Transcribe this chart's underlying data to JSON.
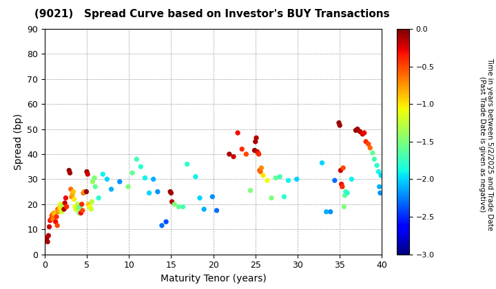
{
  "title": "(9021)   Spread Curve based on Investor's BUY Transactions",
  "xlabel": "Maturity Tenor (years)",
  "ylabel": "Spread (bp)",
  "colorbar_label_line1": "Time in years between 5/2/2025 and Trade Date",
  "colorbar_label_line2": "(Past Trade Date is given as negative)",
  "xlim": [
    0,
    40
  ],
  "ylim": [
    0,
    90
  ],
  "xticks": [
    0,
    5,
    10,
    15,
    20,
    25,
    30,
    35,
    40
  ],
  "yticks": [
    0,
    10,
    20,
    30,
    40,
    50,
    60,
    70,
    80,
    90
  ],
  "cmap": "jet",
  "vmin": -3.0,
  "vmax": 0.0,
  "colorbar_ticks": [
    0.0,
    -0.5,
    -1.0,
    -1.5,
    -2.0,
    -2.5,
    -3.0
  ],
  "scatter_points": [
    [
      0.25,
      6.5,
      -0.05
    ],
    [
      0.35,
      5.0,
      -0.1
    ],
    [
      0.45,
      7.5,
      -0.15
    ],
    [
      0.55,
      11.0,
      -0.2
    ],
    [
      0.65,
      13.5,
      -0.3
    ],
    [
      0.75,
      14.0,
      -0.4
    ],
    [
      0.85,
      15.5,
      -0.5
    ],
    [
      0.95,
      16.0,
      -0.6
    ],
    [
      1.0,
      14.0,
      -0.7
    ],
    [
      1.1,
      16.5,
      -0.8
    ],
    [
      1.2,
      16.0,
      -0.9
    ],
    [
      1.3,
      13.0,
      -0.3
    ],
    [
      1.4,
      15.0,
      -0.4
    ],
    [
      1.5,
      11.5,
      -0.5
    ],
    [
      1.55,
      18.0,
      -0.6
    ],
    [
      1.6,
      17.0,
      -0.7
    ],
    [
      1.7,
      17.5,
      -0.8
    ],
    [
      1.8,
      19.0,
      -0.9
    ],
    [
      1.85,
      18.5,
      -1.0
    ],
    [
      1.9,
      20.0,
      -1.1
    ],
    [
      2.0,
      17.0,
      -1.2
    ],
    [
      2.1,
      19.5,
      -1.3
    ],
    [
      2.3,
      18.0,
      -0.1
    ],
    [
      2.4,
      20.5,
      -0.2
    ],
    [
      2.5,
      22.5,
      -0.3
    ],
    [
      2.6,
      19.0,
      -0.4
    ],
    [
      2.9,
      33.5,
      -0.05
    ],
    [
      3.0,
      32.5,
      -0.1
    ],
    [
      3.1,
      26.0,
      -0.6
    ],
    [
      3.2,
      23.0,
      -0.7
    ],
    [
      3.3,
      24.0,
      -0.8
    ],
    [
      3.4,
      25.0,
      -0.9
    ],
    [
      3.5,
      22.0,
      -1.0
    ],
    [
      3.6,
      19.0,
      -1.1
    ],
    [
      3.7,
      18.0,
      -1.2
    ],
    [
      3.9,
      20.0,
      -1.3
    ],
    [
      4.0,
      18.5,
      -1.4
    ],
    [
      4.1,
      16.5,
      -1.5
    ],
    [
      4.2,
      19.0,
      -1.6
    ],
    [
      4.3,
      16.5,
      -0.3
    ],
    [
      4.4,
      20.0,
      -0.4
    ],
    [
      4.5,
      17.5,
      -0.5
    ],
    [
      4.6,
      24.5,
      -0.6
    ],
    [
      4.7,
      25.0,
      -0.7
    ],
    [
      4.8,
      25.0,
      -0.8
    ],
    [
      4.95,
      25.0,
      -0.05
    ],
    [
      5.0,
      33.0,
      -0.1
    ],
    [
      5.1,
      32.0,
      -0.2
    ],
    [
      5.2,
      20.0,
      -0.9
    ],
    [
      5.3,
      19.0,
      -1.0
    ],
    [
      5.4,
      19.0,
      -1.1
    ],
    [
      5.5,
      18.0,
      -1.2
    ],
    [
      5.6,
      21.0,
      -1.3
    ],
    [
      5.7,
      29.0,
      -1.4
    ],
    [
      5.9,
      30.5,
      -1.5
    ],
    [
      6.0,
      27.0,
      -1.6
    ],
    [
      6.4,
      22.5,
      -1.8
    ],
    [
      6.9,
      32.0,
      -1.9
    ],
    [
      7.4,
      30.0,
      -2.0
    ],
    [
      7.9,
      26.0,
      -2.1
    ],
    [
      8.9,
      29.0,
      -2.2
    ],
    [
      9.9,
      27.0,
      -1.5
    ],
    [
      10.4,
      32.5,
      -1.6
    ],
    [
      10.9,
      38.0,
      -1.7
    ],
    [
      11.4,
      35.0,
      -1.8
    ],
    [
      11.9,
      30.5,
      -1.9
    ],
    [
      12.4,
      24.5,
      -2.0
    ],
    [
      12.9,
      30.0,
      -2.1
    ],
    [
      13.4,
      25.0,
      -2.2
    ],
    [
      13.9,
      11.5,
      -2.3
    ],
    [
      14.4,
      13.0,
      -2.4
    ],
    [
      14.9,
      25.0,
      -0.05
    ],
    [
      15.0,
      24.5,
      -0.1
    ],
    [
      15.1,
      21.0,
      -0.15
    ],
    [
      15.4,
      20.0,
      -1.5
    ],
    [
      15.9,
      19.0,
      -1.6
    ],
    [
      16.4,
      19.0,
      -1.7
    ],
    [
      16.9,
      36.0,
      -1.8
    ],
    [
      17.9,
      31.0,
      -1.9
    ],
    [
      18.4,
      22.5,
      -2.0
    ],
    [
      18.9,
      18.0,
      -2.1
    ],
    [
      19.9,
      23.0,
      -2.2
    ],
    [
      20.4,
      17.5,
      -2.3
    ],
    [
      21.9,
      40.0,
      -0.1
    ],
    [
      22.4,
      39.0,
      -0.2
    ],
    [
      22.9,
      48.5,
      -0.3
    ],
    [
      23.4,
      42.0,
      -0.4
    ],
    [
      23.9,
      40.0,
      -0.5
    ],
    [
      24.4,
      25.5,
      -1.5
    ],
    [
      24.9,
      41.5,
      -0.05
    ],
    [
      25.0,
      45.0,
      -0.1
    ],
    [
      25.1,
      46.5,
      -0.15
    ],
    [
      25.2,
      41.0,
      -0.2
    ],
    [
      25.3,
      40.5,
      -0.3
    ],
    [
      25.4,
      40.0,
      -0.4
    ],
    [
      25.5,
      33.5,
      -0.5
    ],
    [
      25.6,
      33.0,
      -0.6
    ],
    [
      25.7,
      34.5,
      -0.7
    ],
    [
      25.9,
      31.5,
      -1.0
    ],
    [
      26.4,
      29.5,
      -1.1
    ],
    [
      26.9,
      22.5,
      -1.5
    ],
    [
      27.4,
      30.5,
      -1.6
    ],
    [
      27.9,
      31.0,
      -1.7
    ],
    [
      28.4,
      23.0,
      -1.8
    ],
    [
      28.9,
      29.5,
      -1.9
    ],
    [
      29.9,
      30.0,
      -2.0
    ],
    [
      32.9,
      36.5,
      -2.0
    ],
    [
      33.4,
      17.0,
      -2.1
    ],
    [
      33.9,
      17.0,
      -2.2
    ],
    [
      34.4,
      29.5,
      -2.3
    ],
    [
      34.9,
      52.5,
      -0.05
    ],
    [
      35.0,
      51.5,
      -0.1
    ],
    [
      35.1,
      33.5,
      -0.2
    ],
    [
      35.2,
      28.0,
      -0.3
    ],
    [
      35.3,
      27.0,
      -0.4
    ],
    [
      35.4,
      34.5,
      -0.5
    ],
    [
      35.5,
      19.0,
      -1.5
    ],
    [
      35.6,
      23.5,
      -1.6
    ],
    [
      35.7,
      25.0,
      -1.7
    ],
    [
      35.9,
      24.5,
      -1.8
    ],
    [
      36.4,
      30.0,
      -1.9
    ],
    [
      36.9,
      49.5,
      -0.05
    ],
    [
      37.1,
      50.0,
      -0.1
    ],
    [
      37.4,
      49.0,
      -0.15
    ],
    [
      37.7,
      48.0,
      -0.2
    ],
    [
      37.9,
      48.5,
      -0.3
    ],
    [
      38.1,
      45.0,
      -0.4
    ],
    [
      38.4,
      44.0,
      -0.5
    ],
    [
      38.6,
      42.5,
      -0.6
    ],
    [
      38.9,
      40.5,
      -1.6
    ],
    [
      39.1,
      38.0,
      -1.7
    ],
    [
      39.4,
      35.5,
      -1.8
    ],
    [
      39.6,
      33.0,
      -1.9
    ],
    [
      39.9,
      31.5,
      -2.0
    ],
    [
      39.7,
      27.0,
      -2.1
    ],
    [
      39.8,
      24.5,
      -2.2
    ]
  ]
}
